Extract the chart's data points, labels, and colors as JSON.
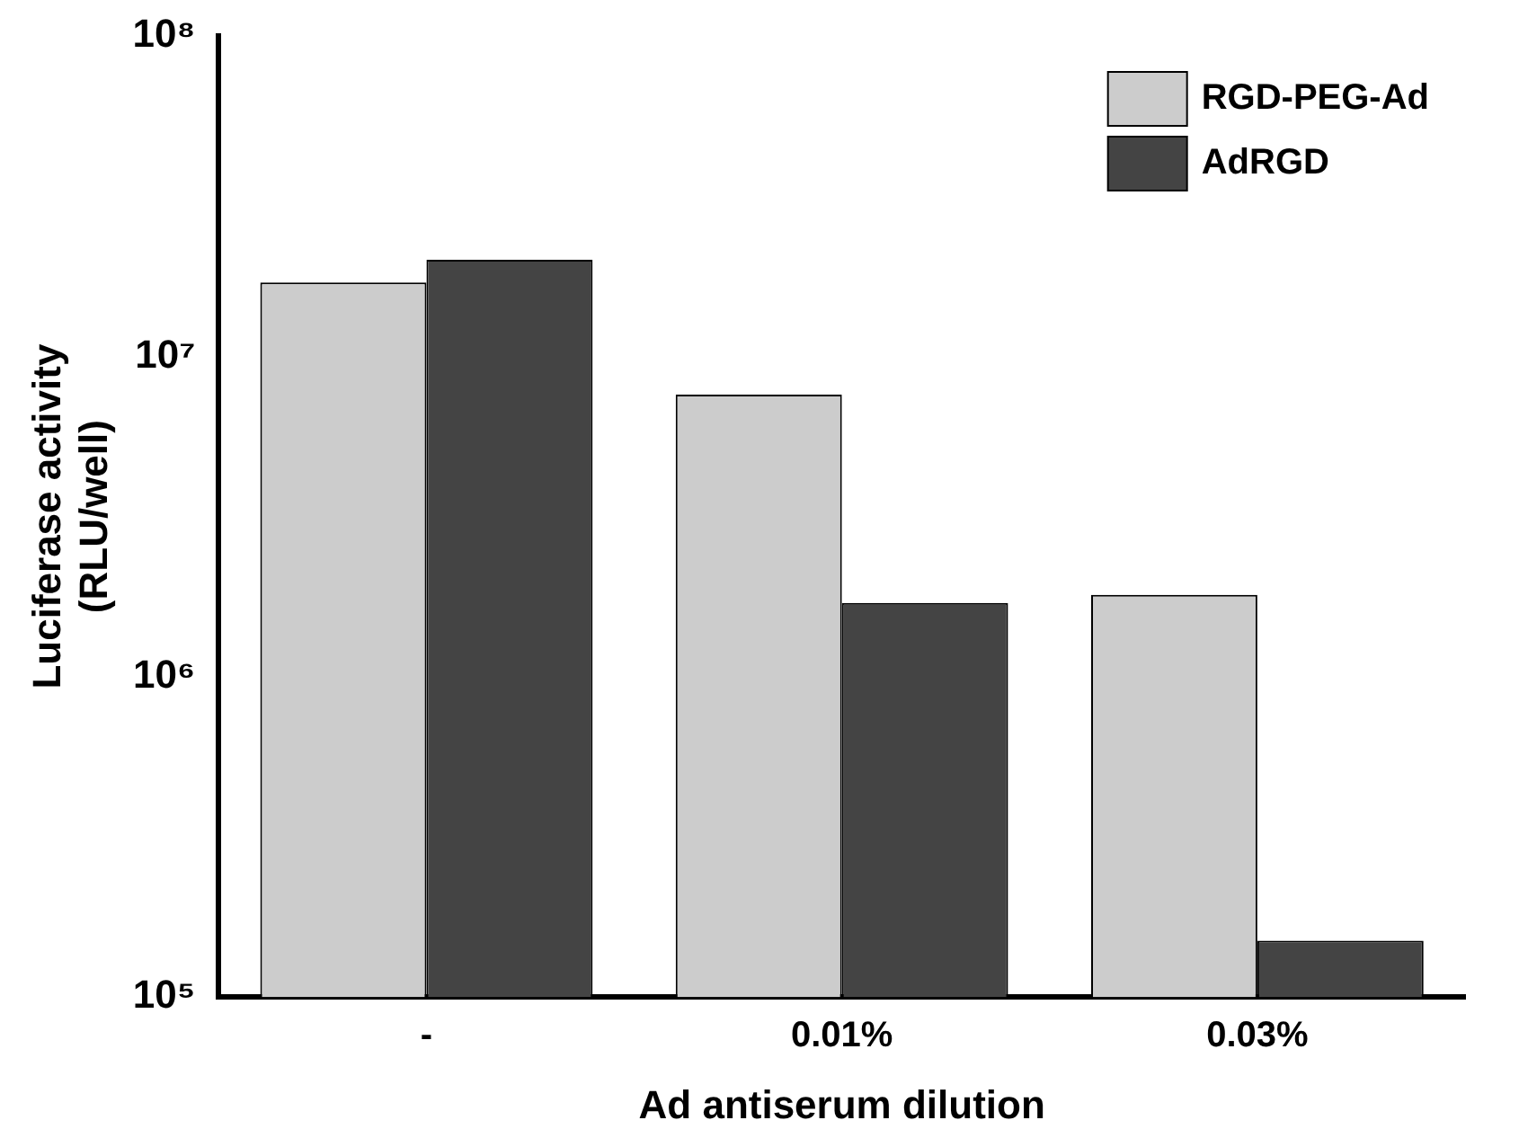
{
  "chart_data": {
    "type": "bar",
    "xlabel": "Ad antiserum dilution",
    "ylabel": "Luciferase activity\n(RLU/well)",
    "categories": [
      "-",
      "0.01%",
      "0.03%"
    ],
    "series": [
      {
        "name": "RGD-PEG-Ad",
        "color": "#cccccc",
        "values": [
          17000000,
          7600000,
          1800000
        ]
      },
      {
        "name": "AdRGD",
        "color": "#444444",
        "values": [
          20000000,
          1700000,
          150000
        ]
      }
    ],
    "log": "y",
    "ylim": [
      100000,
      100000000
    ],
    "yticks": [
      {
        "value": 100000,
        "label": "10⁵"
      },
      {
        "value": 1000000,
        "label": "10⁶"
      },
      {
        "value": 10000000,
        "label": "10⁷"
      },
      {
        "value": 100000000,
        "label": "10⁸"
      }
    ],
    "legend": "top right"
  }
}
